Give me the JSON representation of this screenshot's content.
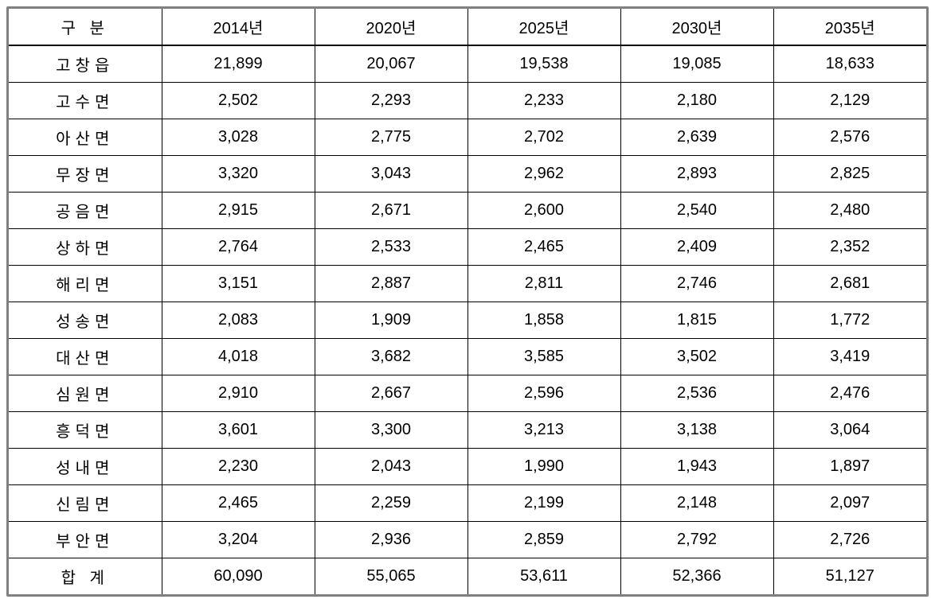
{
  "table": {
    "type": "table",
    "background_color": "#ffffff",
    "border_color": "#000000",
    "outer_border_color": "#808080",
    "text_color": "#000000",
    "font_size": 20,
    "header_divider_width": 2,
    "cell_border_width": 1,
    "columns": [
      {
        "label": "구 분",
        "align": "center"
      },
      {
        "label": "2014년",
        "align": "center"
      },
      {
        "label": "2020년",
        "align": "center"
      },
      {
        "label": "2025년",
        "align": "center"
      },
      {
        "label": "2030년",
        "align": "center"
      },
      {
        "label": "2035년",
        "align": "center"
      }
    ],
    "rows": [
      {
        "label": "고창읍",
        "values": [
          "21,899",
          "20,067",
          "19,538",
          "19,085",
          "18,633"
        ]
      },
      {
        "label": "고수면",
        "values": [
          "2,502",
          "2,293",
          "2,233",
          "2,180",
          "2,129"
        ]
      },
      {
        "label": "아산면",
        "values": [
          "3,028",
          "2,775",
          "2,702",
          "2,639",
          "2,576"
        ]
      },
      {
        "label": "무장면",
        "values": [
          "3,320",
          "3,043",
          "2,962",
          "2,893",
          "2,825"
        ]
      },
      {
        "label": "공음면",
        "values": [
          "2,915",
          "2,671",
          "2,600",
          "2,540",
          "2,480"
        ]
      },
      {
        "label": "상하면",
        "values": [
          "2,764",
          "2,533",
          "2,465",
          "2,409",
          "2,352"
        ]
      },
      {
        "label": "해리면",
        "values": [
          "3,151",
          "2,887",
          "2,811",
          "2,746",
          "2,681"
        ]
      },
      {
        "label": "성송면",
        "values": [
          "2,083",
          "1,909",
          "1,858",
          "1,815",
          "1,772"
        ]
      },
      {
        "label": "대산면",
        "values": [
          "4,018",
          "3,682",
          "3,585",
          "3,502",
          "3,419"
        ]
      },
      {
        "label": "심원면",
        "values": [
          "2,910",
          "2,667",
          "2,596",
          "2,536",
          "2,476"
        ]
      },
      {
        "label": "흥덕면",
        "values": [
          "3,601",
          "3,300",
          "3,213",
          "3,138",
          "3,064"
        ]
      },
      {
        "label": "성내면",
        "values": [
          "2,230",
          "2,043",
          "1,990",
          "1,943",
          "1,897"
        ]
      },
      {
        "label": "신림면",
        "values": [
          "2,465",
          "2,259",
          "2,199",
          "2,148",
          "2,097"
        ]
      },
      {
        "label": "부안면",
        "values": [
          "3,204",
          "2,936",
          "2,859",
          "2,792",
          "2,726"
        ]
      },
      {
        "label": "합 계",
        "values": [
          "60,090",
          "55,065",
          "53,611",
          "52,366",
          "51,127"
        ]
      }
    ]
  }
}
